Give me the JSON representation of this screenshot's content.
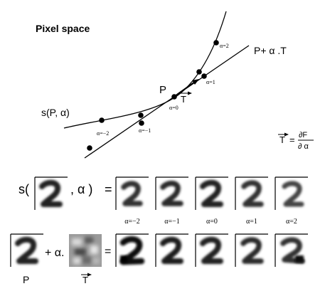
{
  "title": "Pixel space",
  "curve_label": "s(P, α)",
  "tangent_line_label": "P+ α .T",
  "point_label": "P",
  "tangent_label": "T",
  "point_alpha_labels": [
    "α=−2",
    "α=−1",
    "α=0",
    "α=1",
    "α=2"
  ],
  "formula": {
    "lhs": "T",
    "eq": "=",
    "num": "∂F",
    "den": "∂ α"
  },
  "row1": {
    "prefix": "s(",
    "middle": ", α )",
    "equals": "="
  },
  "row_alpha_labels": [
    "α=−2",
    "α=−1",
    "α=0",
    "α=1",
    "α=2"
  ],
  "row2": {
    "plus": "+ α.",
    "equals": "=",
    "p_label": "P",
    "t_label": "T"
  },
  "colors": {
    "ink": "#000000",
    "digit_dark": "#2a2a2a",
    "digit_mid": "#6f6f6f",
    "tangent_bg": "#9a9a9a"
  }
}
